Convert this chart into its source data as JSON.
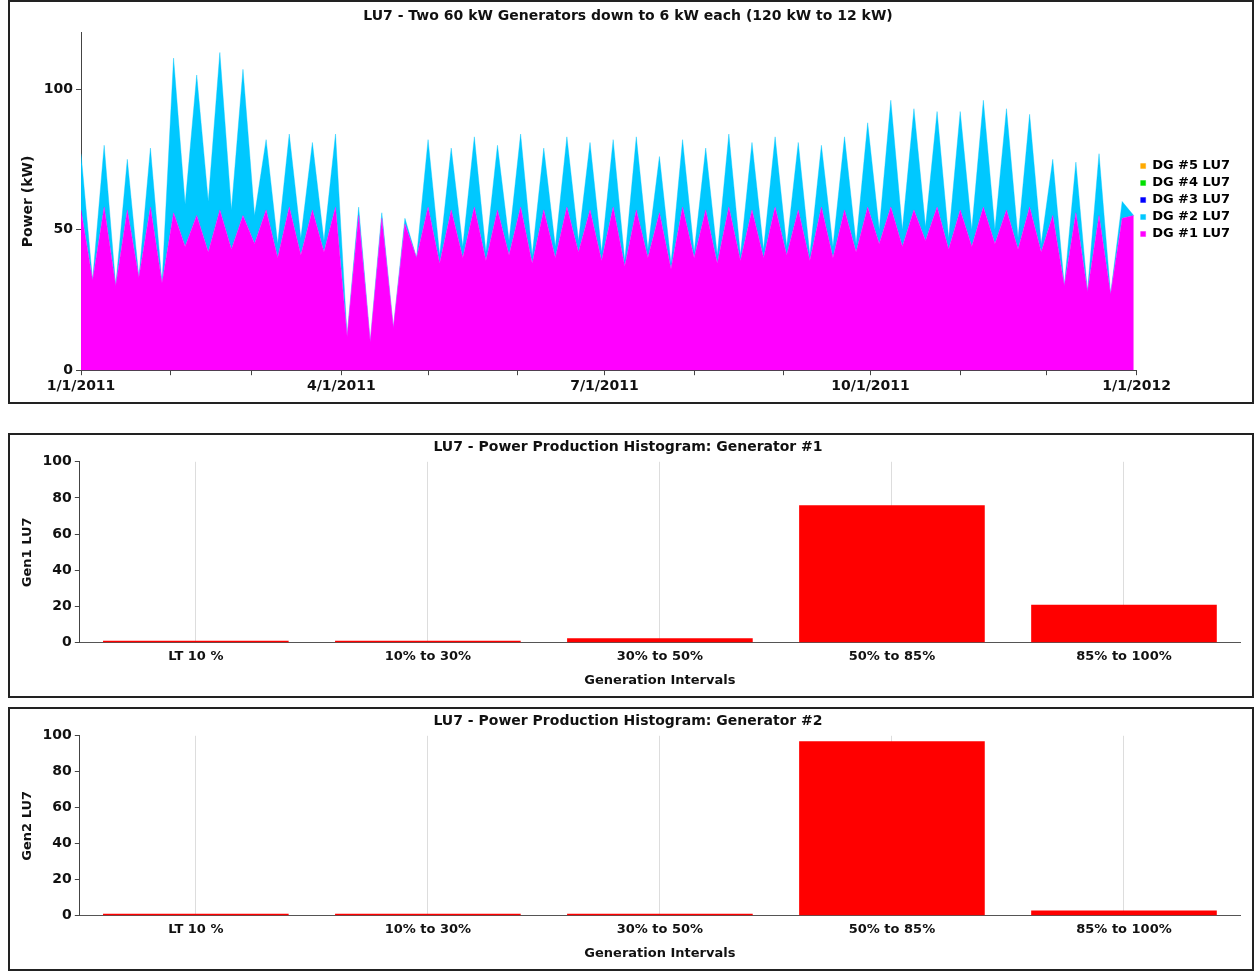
{
  "chart_data": [
    {
      "type": "area",
      "title": "LU7 - Two 60 kW Generators down to 6 kW each (120 kW to 12 kW)",
      "ylabel": "Power (kW)",
      "stacked": true,
      "marker": "none",
      "legend": "right",
      "grid": false,
      "xlim": [
        "2011-01-01",
        "2012-01-01"
      ],
      "xticks": [
        {
          "value": "2011-01-01",
          "label": "1/1/2011"
        },
        {
          "value": "2011-02-01",
          "label": null
        },
        {
          "value": "2011-03-01",
          "label": null
        },
        {
          "value": "2011-04-01",
          "label": "4/1/2011"
        },
        {
          "value": "2011-05-01",
          "label": null
        },
        {
          "value": "2011-06-01",
          "label": null
        },
        {
          "value": "2011-07-01",
          "label": "7/1/2011"
        },
        {
          "value": "2011-08-01",
          "label": null
        },
        {
          "value": "2011-09-01",
          "label": null
        },
        {
          "value": "2011-10-01",
          "label": "10/1/2011"
        },
        {
          "value": "2011-11-01",
          "label": null
        },
        {
          "value": "2011-12-01",
          "label": null
        },
        {
          "value": "2012-01-01",
          "label": "1/1/2012"
        }
      ],
      "ylim": [
        0,
        120
      ],
      "yticks": [
        0,
        50,
        100
      ],
      "x": [
        "2011-01-01",
        "2011-01-05",
        "2011-01-09",
        "2011-01-13",
        "2011-01-17",
        "2011-01-21",
        "2011-01-25",
        "2011-01-29",
        "2011-02-02",
        "2011-02-06",
        "2011-02-10",
        "2011-02-14",
        "2011-02-18",
        "2011-02-22",
        "2011-02-26",
        "2011-03-02",
        "2011-03-06",
        "2011-03-10",
        "2011-03-14",
        "2011-03-18",
        "2011-03-22",
        "2011-03-26",
        "2011-03-30",
        "2011-04-03",
        "2011-04-07",
        "2011-04-11",
        "2011-04-15",
        "2011-04-19",
        "2011-04-23",
        "2011-04-27",
        "2011-05-01",
        "2011-05-05",
        "2011-05-09",
        "2011-05-13",
        "2011-05-17",
        "2011-05-21",
        "2011-05-25",
        "2011-05-29",
        "2011-06-02",
        "2011-06-06",
        "2011-06-10",
        "2011-06-14",
        "2011-06-18",
        "2011-06-22",
        "2011-06-26",
        "2011-06-30",
        "2011-07-04",
        "2011-07-08",
        "2011-07-12",
        "2011-07-16",
        "2011-07-20",
        "2011-07-24",
        "2011-07-28",
        "2011-08-01",
        "2011-08-05",
        "2011-08-09",
        "2011-08-13",
        "2011-08-17",
        "2011-08-21",
        "2011-08-25",
        "2011-08-29",
        "2011-09-02",
        "2011-09-06",
        "2011-09-10",
        "2011-09-14",
        "2011-09-18",
        "2011-09-22",
        "2011-09-26",
        "2011-09-30",
        "2011-10-04",
        "2011-10-08",
        "2011-10-12",
        "2011-10-16",
        "2011-10-20",
        "2011-10-24",
        "2011-10-28",
        "2011-11-01",
        "2011-11-05",
        "2011-11-09",
        "2011-11-13",
        "2011-11-17",
        "2011-11-21",
        "2011-11-25",
        "2011-11-29",
        "2011-12-03",
        "2011-12-07",
        "2011-12-11",
        "2011-12-15",
        "2011-12-19",
        "2011-12-23",
        "2011-12-27",
        "2011-12-31"
      ],
      "series": [
        {
          "name": "DG #1 LU7",
          "color": "#ff00ff",
          "values": [
            57,
            32,
            58,
            30,
            57,
            33,
            58,
            31,
            56,
            44,
            55,
            42,
            57,
            43,
            55,
            45,
            57,
            40,
            58,
            41,
            57,
            42,
            58,
            12,
            55,
            10,
            54,
            15,
            52,
            40,
            58,
            38,
            57,
            40,
            58,
            39,
            57,
            41,
            58,
            38,
            57,
            40,
            58,
            42,
            57,
            39,
            58,
            37,
            57,
            40,
            56,
            36,
            58,
            40,
            57,
            38,
            58,
            39,
            57,
            40,
            58,
            41,
            57,
            39,
            58,
            40,
            57,
            42,
            58,
            45,
            58,
            44,
            57,
            46,
            58,
            43,
            57,
            44,
            58,
            45,
            57,
            43,
            58,
            42,
            55,
            30,
            56,
            28,
            55,
            27,
            54,
            55
          ]
        },
        {
          "name": "DG #2 LU7",
          "color": "#00c8ff",
          "values": [
            20,
            0,
            22,
            0,
            18,
            0,
            21,
            0,
            55,
            15,
            50,
            18,
            56,
            14,
            52,
            10,
            25,
            5,
            26,
            6,
            24,
            4,
            26,
            0,
            3,
            0,
            2,
            0,
            2,
            0,
            24,
            3,
            22,
            4,
            25,
            3,
            23,
            5,
            26,
            3,
            22,
            4,
            25,
            4,
            24,
            3,
            24,
            2,
            26,
            3,
            20,
            2,
            24,
            2,
            22,
            3,
            26,
            2,
            24,
            3,
            25,
            3,
            24,
            2,
            22,
            4,
            26,
            3,
            30,
            5,
            38,
            6,
            36,
            5,
            34,
            4,
            35,
            6,
            38,
            5,
            36,
            4,
            33,
            3,
            20,
            0,
            18,
            0,
            22,
            0,
            6,
            0
          ]
        },
        {
          "name": "DG #3 LU7",
          "color": "#0000ff",
          "values": [
            null,
            null,
            null,
            null,
            null,
            null,
            null,
            null,
            null,
            null,
            null,
            null,
            null,
            null,
            null,
            null,
            null,
            null,
            null,
            null,
            null,
            null,
            null,
            null,
            null,
            null,
            null,
            null,
            null,
            null,
            null,
            null,
            null,
            null,
            null,
            null,
            null,
            null,
            null,
            null,
            null,
            null,
            null,
            null,
            null,
            null,
            null,
            null,
            null,
            null,
            null,
            null,
            null,
            null,
            null,
            null,
            null,
            null,
            null,
            null,
            null,
            null,
            null,
            null,
            null,
            null,
            null,
            null,
            null,
            null,
            null,
            null,
            null,
            null,
            null,
            null,
            null,
            null,
            null,
            null,
            null,
            null,
            null,
            null,
            null,
            null,
            null,
            null,
            null,
            null,
            null,
            null
          ]
        },
        {
          "name": "DG #4 LU7",
          "color": "#00e000",
          "values": [
            null,
            null,
            null,
            null,
            null,
            null,
            null,
            null,
            null,
            null,
            null,
            null,
            null,
            null,
            null,
            null,
            null,
            null,
            null,
            null,
            null,
            null,
            null,
            null,
            null,
            null,
            null,
            null,
            null,
            null,
            null,
            null,
            null,
            null,
            null,
            null,
            null,
            null,
            null,
            null,
            null,
            null,
            null,
            null,
            null,
            null,
            null,
            null,
            null,
            null,
            null,
            null,
            null,
            null,
            null,
            null,
            null,
            null,
            null,
            null,
            null,
            null,
            null,
            null,
            null,
            null,
            null,
            null,
            null,
            null,
            null,
            null,
            null,
            null,
            null,
            null,
            null,
            null,
            null,
            null,
            null,
            null,
            null,
            null,
            null,
            null,
            null,
            null,
            null,
            null,
            null,
            null
          ]
        },
        {
          "name": "DG #5 LU7",
          "color": "#ffaa00",
          "values": [
            null,
            null,
            null,
            null,
            null,
            null,
            null,
            null,
            null,
            null,
            null,
            null,
            null,
            null,
            null,
            null,
            null,
            null,
            null,
            null,
            null,
            null,
            null,
            null,
            null,
            null,
            null,
            null,
            null,
            null,
            null,
            null,
            null,
            null,
            null,
            null,
            null,
            null,
            null,
            null,
            null,
            null,
            null,
            null,
            null,
            null,
            null,
            null,
            null,
            null,
            null,
            null,
            null,
            null,
            null,
            null,
            null,
            null,
            null,
            null,
            null,
            null,
            null,
            null,
            null,
            null,
            null,
            null,
            null,
            null,
            null,
            null,
            null,
            null,
            null,
            null,
            null,
            null,
            null,
            null,
            null,
            null,
            null,
            null,
            null,
            null,
            null,
            null,
            null,
            null,
            null,
            null
          ]
        }
      ]
    },
    {
      "type": "bar",
      "title": "LU7 - Power Production Histogram: Generator #1",
      "xlabel": "Generation Intervals",
      "ylabel": "Gen1 LU7",
      "grid": "x",
      "categories": [
        "LT 10 %",
        "10% to 30%",
        "30% to 50%",
        "50% to 85%",
        "85% to 100%"
      ],
      "values": [
        0.3,
        0.8,
        2.5,
        76,
        21
      ],
      "color": "#ff0000",
      "ylim": [
        0,
        100
      ],
      "yticks": [
        0,
        20,
        40,
        60,
        80,
        100
      ]
    },
    {
      "type": "bar",
      "title": "LU7 - Power Production Histogram: Generator #2",
      "xlabel": "Generation Intervals",
      "ylabel": "Gen2 LU7",
      "grid": "x",
      "categories": [
        "LT 10 %",
        "10% to 30%",
        "30% to 50%",
        "50% to 85%",
        "85% to 100%"
      ],
      "values": [
        0.3,
        0.3,
        0.3,
        97,
        3
      ],
      "color": "#ff0000",
      "ylim": [
        0,
        100
      ],
      "yticks": [
        0,
        20,
        40,
        60,
        80,
        100
      ]
    }
  ]
}
